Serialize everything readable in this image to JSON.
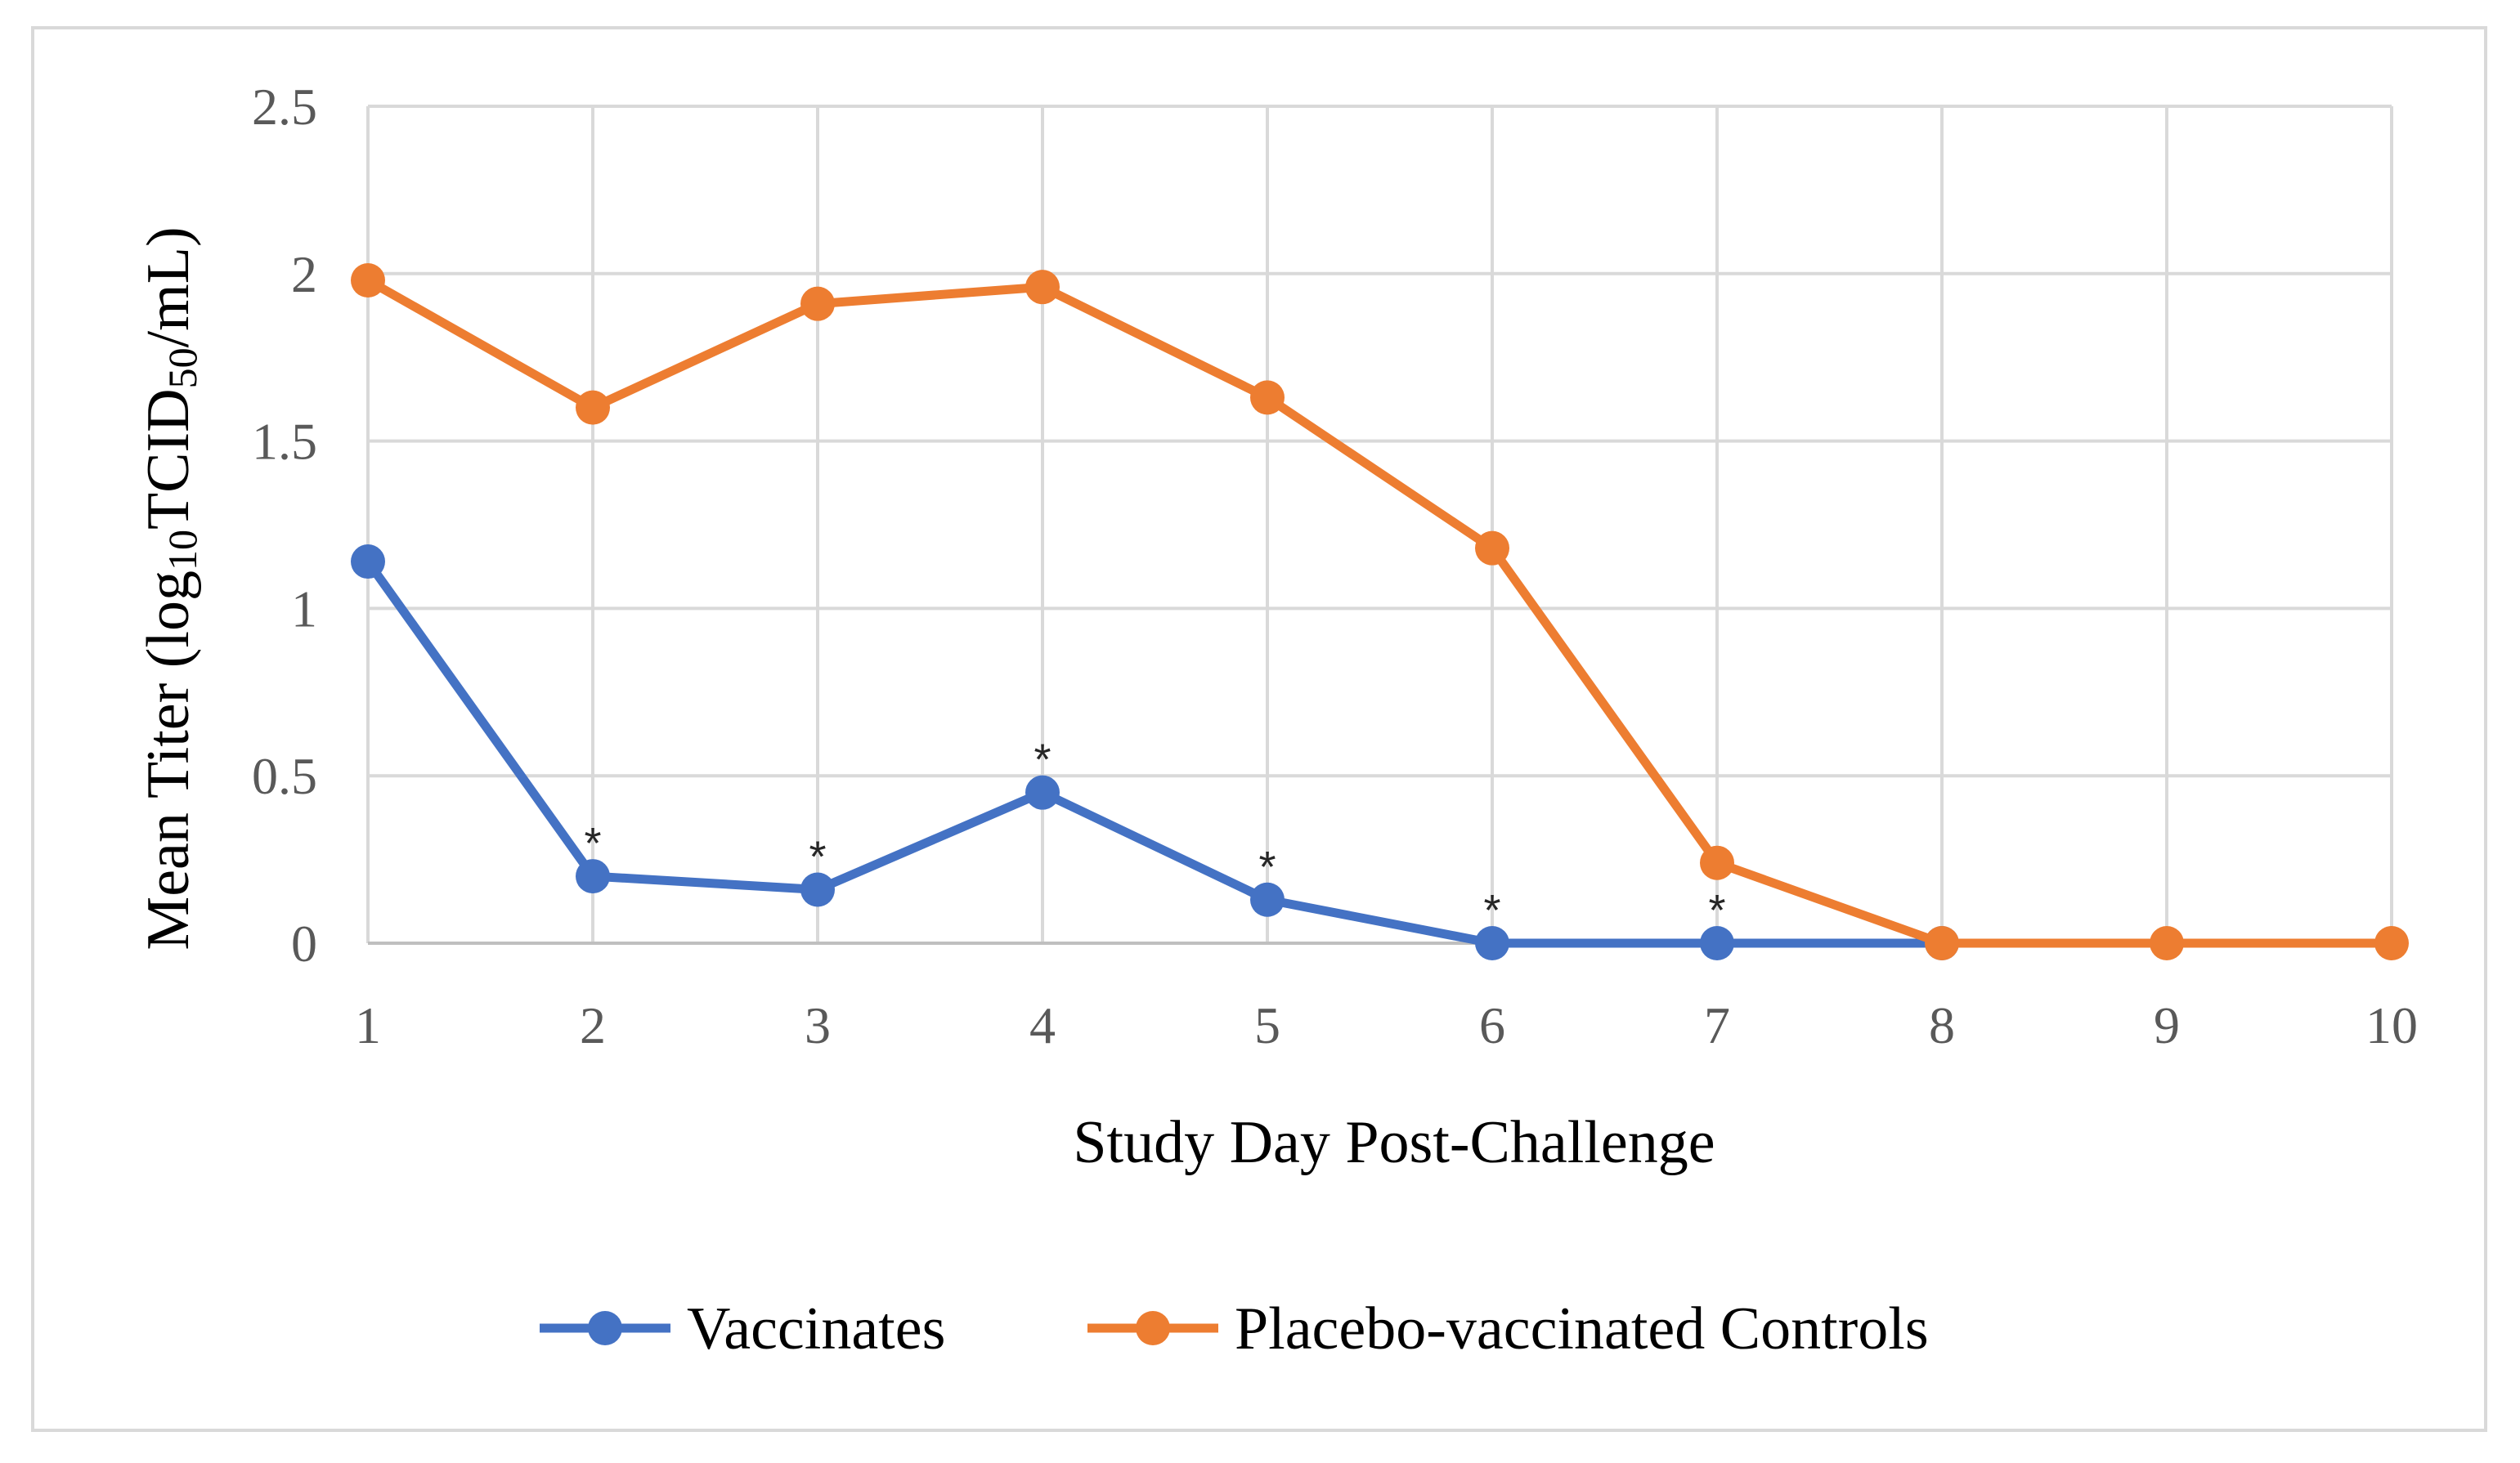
{
  "chart_data": {
    "type": "line",
    "x": [
      1,
      2,
      3,
      4,
      5,
      6,
      7,
      8,
      9,
      10
    ],
    "xlabel": "Study Day Post-Challenge",
    "ylabel_parts": [
      "Mean Titer (log",
      "10",
      "TCID",
      "50",
      "/mL)"
    ],
    "ylim": [
      0,
      2.5
    ],
    "y_ticks": [
      0,
      0.5,
      1,
      1.5,
      2,
      2.5
    ],
    "y_tick_labels": [
      "0",
      "0.5",
      "1",
      "1.5",
      "2",
      "2.5"
    ],
    "x_tick_labels": [
      "1",
      "2",
      "3",
      "4",
      "5",
      "6",
      "7",
      "8",
      "9",
      "10"
    ],
    "grid": true,
    "legend_position": "bottom",
    "series": [
      {
        "name": "Vaccinates",
        "color": "#4472c4",
        "x": [
          1,
          2,
          3,
          4,
          5,
          6,
          7,
          8
        ],
        "values": [
          1.14,
          0.2,
          0.16,
          0.45,
          0.13,
          0,
          0,
          0
        ]
      },
      {
        "name": "Placebo-vaccinated Controls",
        "color": "#ed7d31",
        "x": [
          1,
          2,
          3,
          4,
          5,
          6,
          7,
          8,
          9,
          10
        ],
        "values": [
          1.98,
          1.6,
          1.91,
          1.96,
          1.63,
          1.18,
          0.24,
          0,
          0,
          0
        ]
      }
    ],
    "annotations": [
      {
        "text": "*",
        "x": 2,
        "y": 0.2
      },
      {
        "text": "*",
        "x": 3,
        "y": 0.16
      },
      {
        "text": "*",
        "x": 4,
        "y": 0.45
      },
      {
        "text": "*",
        "x": 5,
        "y": 0.13
      },
      {
        "text": "*",
        "x": 6,
        "y": 0
      },
      {
        "text": "*",
        "x": 7,
        "y": 0
      }
    ],
    "grid_color": "#d9d9d9",
    "axis_color": "#bfbfbf"
  }
}
